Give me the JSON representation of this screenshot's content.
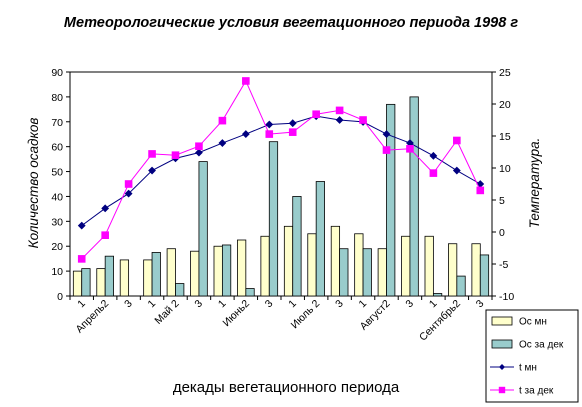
{
  "chart_data": {
    "type": "bar",
    "title": "Метеорологические условия вегетационного периода 1998 г",
    "xlabel": "декады вегетационного периода",
    "ylabel": "Количество осадков",
    "ylabel_right": "Температура.",
    "ylim": [
      0,
      90
    ],
    "ylim_right": [
      -10,
      25
    ],
    "yticks": [
      "0",
      "10",
      "20",
      "30",
      "40",
      "50",
      "60",
      "70",
      "80",
      "90"
    ],
    "yticks_right": [
      "-10",
      "-5",
      "0",
      "5",
      "10",
      "15",
      "20",
      "25"
    ],
    "categories": [
      "1",
      "Апрель2",
      "3",
      "1",
      "Май 2",
      "3",
      "1",
      "Июнь2",
      "3",
      "1",
      "Июль 2",
      "3",
      "1",
      "Август2",
      "3",
      "1",
      "Сентябрь2",
      "3"
    ],
    "grid": false,
    "legend_position": "bottom-right",
    "series": [
      {
        "name": "Ос мн",
        "kind": "bar",
        "axis": "left",
        "color": "#ffffcc",
        "values": [
          10,
          11,
          14.5,
          14.5,
          19,
          18,
          20,
          22.5,
          24,
          28,
          25,
          28,
          25,
          19,
          24,
          24,
          21,
          21
        ]
      },
      {
        "name": "Ос за дек",
        "kind": "bar",
        "axis": "left",
        "color": "#99cccc",
        "values": [
          11,
          16,
          0,
          17.5,
          5,
          54,
          20.5,
          3,
          62,
          40,
          46,
          19,
          19,
          77,
          80,
          1,
          8,
          16.5
        ]
      },
      {
        "name": "t мн",
        "kind": "line",
        "axis": "right",
        "color": "#000080",
        "marker": "diamond",
        "values": [
          1,
          3.7,
          6,
          9.6,
          11.5,
          12.4,
          13.9,
          15.3,
          16.8,
          17,
          18.1,
          17.5,
          17.2,
          15.3,
          13.9,
          11.9,
          9.6,
          7.5
        ]
      },
      {
        "name": "t за дек",
        "kind": "line",
        "axis": "right",
        "color": "#ff00ff",
        "marker": "square",
        "values": [
          -4.2,
          -0.5,
          7.5,
          12.2,
          12,
          13.4,
          17.4,
          23.6,
          15.3,
          15.6,
          18.4,
          19,
          17.5,
          12.8,
          13,
          9.2,
          14.3,
          6.5
        ]
      }
    ]
  }
}
